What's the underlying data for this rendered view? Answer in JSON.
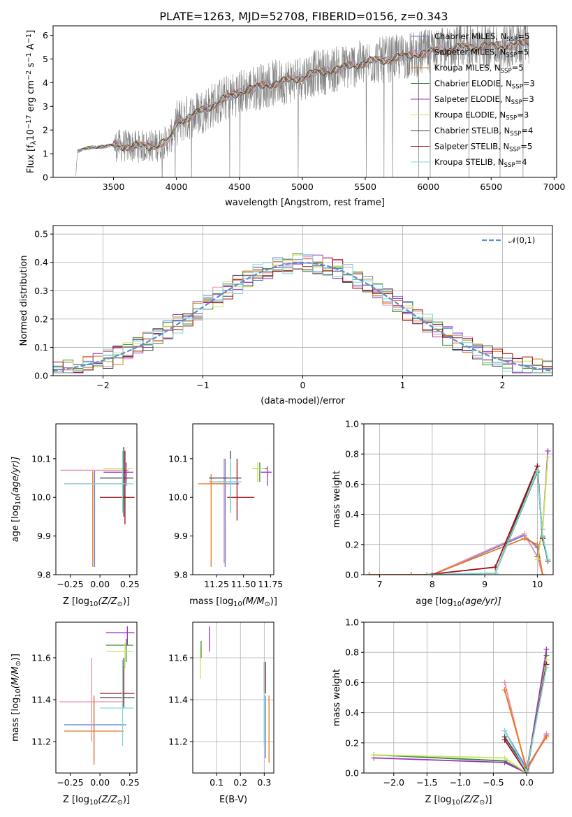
{
  "figure_title": "PLATE=1263, MJD=52708, FIBERID=0156, z=0.343",
  "colors": {
    "chabrier_miles": "#5b7fd6",
    "salpeter_miles": "#e68fb0",
    "kroupa_miles": "#e8761c",
    "chabrier_elodie": "#3a8a3a",
    "salpeter_elodie": "#9b30c0",
    "kroupa_elodie": "#c9e45a",
    "chabrier_stelib": "#444444",
    "salpeter_stelib": "#9e0e12",
    "kroupa_stelib": "#7fd8d8",
    "data_spectrum": "#808080",
    "normal_curve": "#5b8bd6",
    "grid": "#b0b0b0"
  },
  "legend_spectrum": [
    {
      "key": "chabrier_miles",
      "label": "Chabrier MILES, N",
      "sub": "SSP",
      "suffix": "=5"
    },
    {
      "key": "salpeter_miles",
      "label": "Salpeter MILES, N",
      "sub": "SSP",
      "suffix": "=5"
    },
    {
      "key": "kroupa_miles",
      "label": "Kroupa MILES, N",
      "sub": "SSP",
      "suffix": "=5"
    },
    {
      "key": "chabrier_elodie",
      "label": "Chabrier ELODIE, N",
      "sub": "SSP",
      "suffix": "=3"
    },
    {
      "key": "salpeter_elodie",
      "label": "Salpeter ELODIE, N",
      "sub": "SSP",
      "suffix": "=3"
    },
    {
      "key": "kroupa_elodie",
      "label": "Kroupa ELODIE, N",
      "sub": "SSP",
      "suffix": "=3"
    },
    {
      "key": "chabrier_stelib",
      "label": "Chabrier STELIB, N",
      "sub": "SSP",
      "suffix": "=4"
    },
    {
      "key": "salpeter_stelib",
      "label": "Salpeter STELIB, N",
      "sub": "SSP",
      "suffix": "=5"
    },
    {
      "key": "kroupa_stelib",
      "label": "Kroupa STELIB, N",
      "sub": "SSP",
      "suffix": "=4"
    }
  ],
  "chart_data": [
    {
      "id": "spectrum",
      "type": "line",
      "xlabel": "wavelength [Angstrom, rest frame]",
      "ylabel": "Flux [f",
      "ylabel_parts": {
        "a": "Flux [f",
        "sub": "λ",
        "b": "10",
        "sup1": "−17",
        "c": " erg cm",
        "sup2": "−2",
        "d": " s",
        "sup3": "−1",
        "e": " A",
        "sup4": "−1",
        "f": "]"
      },
      "xlim": [
        3020,
        7020
      ],
      "ylim": [
        0,
        6.4
      ],
      "xticks": [
        3500,
        4000,
        4500,
        5000,
        5500,
        6000,
        6500,
        7000
      ],
      "yticks": [
        0,
        1,
        2,
        3,
        4,
        5,
        6
      ],
      "grid": false,
      "legend": "top-right",
      "data_range": [
        3200,
        6800
      ],
      "model_anchors": {
        "x": [
          3200,
          3215,
          3300,
          3500,
          3700,
          3850,
          3950,
          4000,
          4100,
          4200,
          4300,
          4500,
          4700,
          4900,
          5100,
          5300,
          5500,
          5700,
          5900,
          6100,
          6300,
          6500,
          6700,
          6800
        ],
        "y": [
          0.05,
          1.1,
          1.25,
          1.35,
          1.3,
          1.35,
          1.6,
          2.3,
          2.55,
          2.8,
          3.1,
          3.6,
          3.9,
          4.1,
          4.4,
          4.6,
          4.85,
          5.0,
          5.2,
          5.35,
          5.5,
          5.55,
          5.6,
          5.65
        ]
      }
    },
    {
      "id": "residual_hist",
      "type": "line",
      "xlabel": "(data-model)/error",
      "ylabel": "Normed distribution",
      "xlim": [
        -2.5,
        2.5
      ],
      "ylim": [
        0,
        0.53
      ],
      "xticks": [
        -2,
        -1,
        0,
        1,
        2
      ],
      "yticks": [
        0.0,
        0.1,
        0.2,
        0.3,
        0.4,
        0.5
      ],
      "grid": true,
      "legend": "top-right",
      "legend_label": "𝒩(0,1)",
      "bin_width": 0.1
    },
    {
      "id": "age_vs_Z",
      "type": "scatter",
      "xlabel_a": "Z [log",
      "xlabel_sub": "10",
      "xlabel_b": "(Z/Z",
      "xlabel_sub2": "⊙",
      "xlabel_c": ")]",
      "ylabel_a": "age  [log",
      "ylabel_sub": "10",
      "ylabel_b": "(age/yr)]",
      "xlim": [
        -0.37,
        0.31
      ],
      "ylim": [
        9.8,
        10.19
      ],
      "xticks": [
        -0.25,
        0.0,
        0.25
      ],
      "yticks": [
        9.8,
        9.9,
        10.0,
        10.1
      ],
      "grid": false,
      "points": [
        {
          "key": "chabrier_miles",
          "x": -0.045,
          "y": 10.03,
          "xe": 0.0,
          "ylo": 9.82,
          "yhi": 10.07
        },
        {
          "key": "salpeter_miles",
          "x": -0.06,
          "y": 10.07,
          "xlo": -0.33,
          "xhi": 0.24,
          "ylo": 9.82,
          "yhi": 10.07
        },
        {
          "key": "kroupa_miles",
          "x": -0.06,
          "y": 10.035,
          "xlo": -0.3,
          "xhi": 0.22,
          "ylo": 9.82,
          "yhi": 10.065
        },
        {
          "key": "chabrier_elodie",
          "x": 0.2,
          "y": 10.05,
          "ylo": 9.97,
          "yhi": 10.13
        },
        {
          "key": "salpeter_elodie",
          "x": 0.22,
          "y": 10.065,
          "xlo": 0.03,
          "xhi": 0.28,
          "ylo": 10.03,
          "yhi": 10.09
        },
        {
          "key": "kroupa_elodie",
          "x": 0.2,
          "y": 10.075,
          "xlo": 0.03,
          "xhi": 0.27,
          "ylo": 10.04,
          "yhi": 10.09
        },
        {
          "key": "chabrier_stelib",
          "x": 0.2,
          "y": 10.05,
          "xlo": 0.0,
          "xhi": 0.28,
          "ylo": 9.95,
          "yhi": 10.13
        },
        {
          "key": "salpeter_stelib",
          "x": 0.21,
          "y": 10.0,
          "xlo": 0.0,
          "xhi": 0.29,
          "ylo": 9.93,
          "yhi": 10.12
        },
        {
          "key": "kroupa_stelib",
          "x": 0.19,
          "y": 10.035,
          "xlo": -0.3,
          "xhi": 0.28,
          "ylo": 9.96,
          "yhi": 10.12
        }
      ]
    },
    {
      "id": "age_vs_mass",
      "type": "scatter",
      "xlabel_a": "mass [log",
      "xlabel_sub": "10",
      "xlabel_b": "(M/M",
      "xlabel_sub2": "⊙",
      "xlabel_c": ")]",
      "xlim": [
        11.03,
        11.78
      ],
      "ylim": [
        9.8,
        10.19
      ],
      "xticks": [
        11.25,
        11.5,
        11.75
      ],
      "yticks": [
        9.8,
        9.9,
        10.0,
        10.1
      ],
      "grid": false,
      "points": [
        {
          "key": "chabrier_miles",
          "x": 11.33,
          "y": 10.035,
          "xlo": 11.2,
          "xhi": 11.46,
          "ylo": 9.82,
          "yhi": 10.1
        },
        {
          "key": "salpeter_miles",
          "x": 11.32,
          "y": 10.04,
          "xlo": 11.18,
          "xhi": 11.45,
          "ylo": 9.83,
          "yhi": 10.1
        },
        {
          "key": "kroupa_miles",
          "x": 11.2,
          "y": 10.035,
          "xlo": 11.08,
          "xhi": 11.35,
          "ylo": 9.82,
          "yhi": 10.06
        },
        {
          "key": "chabrier_elodie",
          "x": 11.65,
          "y": 10.075,
          "xlo": 11.58,
          "xhi": 11.72,
          "ylo": 10.04,
          "yhi": 10.09
        },
        {
          "key": "salpeter_elodie",
          "x": 11.72,
          "y": 10.065,
          "xlo": 11.66,
          "xhi": 11.76,
          "ylo": 10.03,
          "yhi": 10.08
        },
        {
          "key": "kroupa_elodie",
          "x": 11.63,
          "y": 10.075,
          "xlo": 11.58,
          "xhi": 11.7,
          "ylo": 10.04,
          "yhi": 10.09
        },
        {
          "key": "chabrier_stelib",
          "x": 11.38,
          "y": 10.05,
          "xlo": 11.18,
          "xhi": 11.48,
          "ylo": 9.96,
          "yhi": 10.12
        },
        {
          "key": "salpeter_stelib",
          "x": 11.44,
          "y": 10.0,
          "xlo": 11.35,
          "xhi": 11.6,
          "ylo": 9.94,
          "yhi": 10.1
        },
        {
          "key": "kroupa_stelib",
          "x": 11.38,
          "y": 10.04,
          "xlo": 11.2,
          "xhi": 11.48,
          "ylo": 9.96,
          "yhi": 10.1
        }
      ]
    },
    {
      "id": "mass_weight_vs_age",
      "type": "line",
      "xlabel_a": "age  [log",
      "xlabel_sub": "10",
      "xlabel_b": "(age/yr)]",
      "ylabel": "mass weight",
      "xlim": [
        6.7,
        10.3
      ],
      "ylim": [
        0,
        1.0
      ],
      "xticks": [
        7,
        8,
        9,
        10
      ],
      "yticks": [
        0.0,
        0.2,
        0.4,
        0.6,
        0.8,
        1.0
      ],
      "grid": true,
      "series": [
        {
          "key": "chabrier_miles",
          "x": [
            6.8,
            7.6,
            8.0,
            9.75,
            10.0,
            10.1
          ],
          "y": [
            0.0,
            0.0,
            0.0,
            0.26,
            0.18,
            0.0
          ]
        },
        {
          "key": "salpeter_miles",
          "x": [
            6.8,
            7.6,
            8.0,
            9.75,
            10.0,
            10.1
          ],
          "y": [
            0.0,
            0.0,
            0.0,
            0.27,
            0.12,
            0.0
          ]
        },
        {
          "key": "kroupa_miles",
          "x": [
            6.8,
            7.6,
            8.0,
            9.75,
            10.0,
            10.1
          ],
          "y": [
            0.0,
            0.0,
            0.0,
            0.24,
            0.2,
            0.0
          ]
        },
        {
          "key": "chabrier_elodie",
          "x": [
            9.2,
            10.0,
            10.1,
            10.2
          ],
          "y": [
            0.01,
            0.68,
            0.25,
            0.09
          ]
        },
        {
          "key": "salpeter_elodie",
          "x": [
            10.0,
            10.1,
            10.2
          ],
          "y": [
            0.12,
            0.3,
            0.82
          ]
        },
        {
          "key": "kroupa_elodie",
          "x": [
            10.0,
            10.1,
            10.2
          ],
          "y": [
            0.1,
            0.3,
            0.78
          ]
        },
        {
          "key": "chabrier_stelib",
          "x": [
            7.9,
            9.2,
            10.0,
            10.1,
            10.2
          ],
          "y": [
            0.0,
            0.01,
            0.72,
            0.24,
            0.09
          ]
        },
        {
          "key": "salpeter_stelib",
          "x": [
            7.9,
            9.2,
            10.0,
            10.1
          ],
          "y": [
            0.0,
            0.05,
            0.72,
            0.24
          ]
        },
        {
          "key": "kroupa_stelib",
          "x": [
            7.9,
            9.2,
            10.0,
            10.1,
            10.2
          ],
          "y": [
            0.0,
            0.01,
            0.69,
            0.26,
            0.1
          ]
        }
      ]
    },
    {
      "id": "mass_vs_Z",
      "type": "scatter",
      "xlabel_a": "Z [log",
      "xlabel_sub": "10",
      "xlabel_b": "(Z/Z",
      "xlabel_sub2": "⊙",
      "xlabel_c": ")]",
      "ylabel_a": "mass [log",
      "ylabel_sub": "10",
      "ylabel_b": "(M/M",
      "ylabel_sub2": "⊙",
      "ylabel_c": ")]",
      "xlim": [
        -0.37,
        0.31
      ],
      "ylim": [
        11.05,
        11.77
      ],
      "xticks": [
        -0.25,
        0.0,
        0.25
      ],
      "yticks": [
        11.2,
        11.4,
        11.6
      ],
      "grid": false,
      "points": [
        {
          "key": "chabrier_miles",
          "x": -0.05,
          "y": 11.28,
          "xlo": -0.3,
          "xhi": 0.22,
          "ylo": 11.11,
          "yhi": 11.41
        },
        {
          "key": "salpeter_miles",
          "x": -0.07,
          "y": 11.39,
          "xlo": -0.34,
          "xhi": 0.2,
          "ylo": 11.2,
          "yhi": 11.6
        },
        {
          "key": "kroupa_miles",
          "x": -0.05,
          "y": 11.25,
          "xlo": -0.3,
          "xhi": 0.2,
          "ylo": 11.09,
          "yhi": 11.42
        },
        {
          "key": "chabrier_elodie",
          "x": 0.22,
          "y": 11.66,
          "xlo": 0.05,
          "xhi": 0.28,
          "ylo": 11.58,
          "yhi": 11.69
        },
        {
          "key": "salpeter_elodie",
          "x": 0.23,
          "y": 11.72,
          "xlo": 0.05,
          "xhi": 0.29,
          "ylo": 11.66,
          "yhi": 11.75
        },
        {
          "key": "kroupa_elodie",
          "x": 0.21,
          "y": 11.63,
          "xlo": 0.05,
          "xhi": 0.28,
          "ylo": 11.55,
          "yhi": 11.67
        },
        {
          "key": "chabrier_stelib",
          "x": 0.2,
          "y": 11.41,
          "xlo": 0.0,
          "xhi": 0.29,
          "ylo": 11.36,
          "yhi": 11.6
        },
        {
          "key": "salpeter_stelib",
          "x": 0.2,
          "y": 11.43,
          "xlo": 0.0,
          "xhi": 0.29,
          "ylo": 11.37,
          "yhi": 11.56
        },
        {
          "key": "kroupa_stelib",
          "x": 0.19,
          "y": 11.36,
          "xlo": 0.0,
          "xhi": 0.28,
          "ylo": 11.18,
          "yhi": 11.59
        }
      ]
    },
    {
      "id": "mass_vs_EBV",
      "type": "scatter",
      "xlabel": "E(B-V)",
      "xlim": [
        0.0,
        0.34
      ],
      "ylim": [
        11.05,
        11.77
      ],
      "xticks": [
        0.1,
        0.2,
        0.3
      ],
      "yticks": [
        11.2,
        11.4,
        11.6
      ],
      "grid": true,
      "points": [
        {
          "key": "chabrier_miles",
          "x": 0.305,
          "y": 11.28,
          "ylo": 11.12,
          "yhi": 11.42
        },
        {
          "key": "salpeter_miles",
          "x": 0.3,
          "y": 11.39,
          "ylo": 11.2,
          "yhi": 11.52
        },
        {
          "key": "kroupa_miles",
          "x": 0.32,
          "y": 11.25,
          "ylo": 11.1,
          "yhi": 11.42
        },
        {
          "key": "chabrier_elodie",
          "x": 0.035,
          "y": 11.66,
          "ylo": 11.6,
          "yhi": 11.68
        },
        {
          "key": "salpeter_elodie",
          "x": 0.07,
          "y": 11.72,
          "ylo": 11.63,
          "yhi": 11.75
        },
        {
          "key": "kroupa_elodie",
          "x": 0.032,
          "y": 11.6,
          "ylo": 11.5,
          "yhi": 11.65
        },
        {
          "key": "chabrier_stelib",
          "x": 0.3,
          "y": 11.51,
          "ylo": 11.44,
          "yhi": 11.58
        },
        {
          "key": "salpeter_stelib",
          "x": 0.305,
          "y": 11.5,
          "ylo": 11.43,
          "yhi": 11.58
        },
        {
          "key": "kroupa_stelib",
          "x": 0.3,
          "y": 11.36,
          "ylo": 11.18,
          "yhi": 11.58
        }
      ]
    },
    {
      "id": "mass_weight_vs_Z",
      "type": "line",
      "xlabel_a": "Z [log",
      "xlabel_sub": "10",
      "xlabel_b": "(Z/Z",
      "xlabel_sub2": "⊙",
      "xlabel_c": ")]",
      "ylabel": "mass weight",
      "xlim": [
        -2.45,
        0.4
      ],
      "ylim": [
        0,
        1.0
      ],
      "xticks": [
        -2.0,
        -1.5,
        -1.0,
        -0.5,
        0.0
      ],
      "yticks": [
        0.0,
        0.2,
        0.4,
        0.6,
        0.8,
        1.0
      ],
      "grid": true,
      "series": [
        {
          "key": "chabrier_miles",
          "x": [
            -0.33,
            0.0,
            0.3
          ],
          "y": [
            0.28,
            0.03,
            0.25
          ]
        },
        {
          "key": "salpeter_miles",
          "x": [
            -0.33,
            0.0,
            0.3
          ],
          "y": [
            0.6,
            0.01,
            0.26
          ]
        },
        {
          "key": "kroupa_miles",
          "x": [
            -0.33,
            0.0,
            0.3
          ],
          "y": [
            0.55,
            0.03,
            0.24
          ]
        },
        {
          "key": "chabrier_elodie",
          "x": [
            -2.3,
            -0.33,
            0.0,
            0.3
          ],
          "y": [
            0.12,
            0.08,
            0.0,
            0.78
          ]
        },
        {
          "key": "salpeter_elodie",
          "x": [
            -2.3,
            -0.33,
            0.0,
            0.3
          ],
          "y": [
            0.1,
            0.07,
            0.0,
            0.82
          ]
        },
        {
          "key": "kroupa_elodie",
          "x": [
            -2.3,
            -0.33,
            0.0,
            0.3
          ],
          "y": [
            0.12,
            0.1,
            0.0,
            0.75
          ]
        },
        {
          "key": "chabrier_stelib",
          "x": [
            -0.33,
            0.0,
            0.3
          ],
          "y": [
            0.24,
            0.02,
            0.72
          ]
        },
        {
          "key": "salpeter_stelib",
          "x": [
            -0.33,
            0.0,
            0.3
          ],
          "y": [
            0.22,
            0.0,
            0.72
          ]
        },
        {
          "key": "kroupa_stelib",
          "x": [
            -0.33,
            0.0,
            0.3
          ],
          "y": [
            0.28,
            0.01,
            0.7
          ]
        }
      ]
    }
  ]
}
